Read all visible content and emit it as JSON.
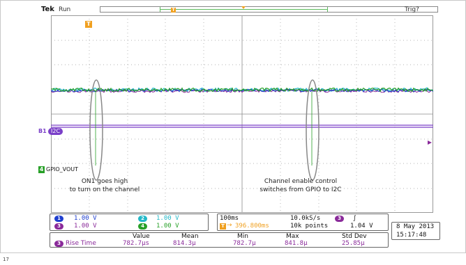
{
  "header": {
    "brand": "Tek",
    "run_state": "Run",
    "trigger_status": "Trig?",
    "trigger_marker": "T"
  },
  "channels": {
    "ch1": {
      "number": "1",
      "scale": "1.00 V",
      "color": "#1f3fcf"
    },
    "ch2": {
      "number": "2",
      "scale": "1.00 V",
      "color": "#22b8c8"
    },
    "ch3": {
      "number": "3",
      "scale": "1.00 V",
      "color": "#8a2a9a"
    },
    "ch4": {
      "number": "4",
      "scale": "1.00 V",
      "color": "#28a028"
    }
  },
  "bus": {
    "id": "B1",
    "label": "I2C",
    "color": "#7a3fc8"
  },
  "markers": {
    "ch4_label": "4",
    "ch4_name": "GPIO_VOUT"
  },
  "annotations": {
    "left_line1": "ON1 goes high",
    "left_line2": "to turn on the channel",
    "right_line1": "Channel enable control",
    "right_line2": "switches from GPIO to I2C"
  },
  "timebase": {
    "scale": "100ms",
    "sample_rate": "10.0kS/s",
    "position": "396.800ms",
    "record_length": "10k points",
    "trigger_channel": "3",
    "trigger_level": "1.04 V"
  },
  "datetime": {
    "date": "8 May 2013",
    "time": "15:17:48"
  },
  "measurement": {
    "channel": "3",
    "name": "Rise Time",
    "headers": [
      "Value",
      "Mean",
      "Min",
      "Max",
      "Std Dev"
    ],
    "values": [
      "782.7µs",
      "814.3µ",
      "782.7µ",
      "841.8µ",
      "25.85µ"
    ]
  },
  "page_number": "17"
}
